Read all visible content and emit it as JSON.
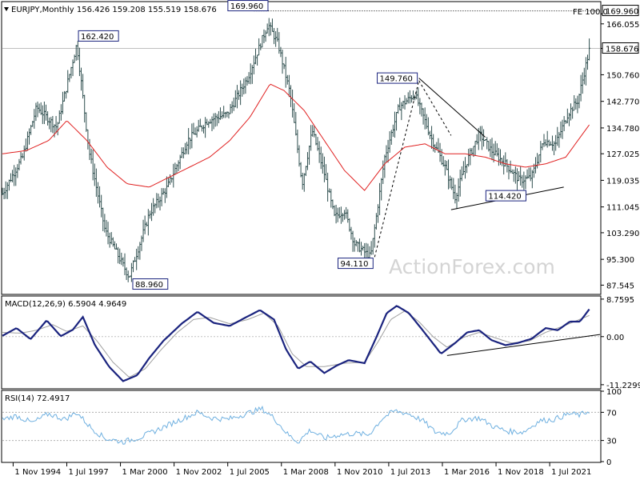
{
  "colors": {
    "price": "#2f4f4f",
    "ma": "#e02020",
    "macd": "#1a237e",
    "signal": "#a0a0a0",
    "rsi": "#6fb0e0",
    "annotation_text": "#1a237e",
    "trendline": "#000000"
  },
  "chart_data": [
    {
      "type": "bar",
      "pane": "price",
      "title": "EURJPY,Monthly  156.426 159.208 155.519 158.676",
      "ohlc": {
        "open": 156.426,
        "high": 159.208,
        "low": 155.519,
        "close": 158.676
      },
      "ylim": [
        85.0,
        172.5
      ],
      "y_ticks": [
        "166.055",
        "158.676",
        "150.760",
        "142.770",
        "134.780",
        "127.025",
        "119.035",
        "111.045",
        "103.290",
        "95.300",
        "87.545"
      ],
      "current_price_label": "158.676",
      "fe_label": "FE 100.0",
      "fe_price_label": "169.960",
      "x_ticks": [
        "1 Nov 1994",
        "1 Jul 1997",
        "1 Mar 2000",
        "1 Nov 2002",
        "1 Jul 2005",
        "1 Mar 2008",
        "1 Nov 2010",
        "1 Jul 2013",
        "1 Mar 2016",
        "1 Nov 2018",
        "1 Jul 2021"
      ],
      "x_range_years": [
        1994.3,
        2024.0
      ],
      "anchors": [
        [
          1994.3,
          115
        ],
        [
          1995.3,
          126
        ],
        [
          1996.0,
          141
        ],
        [
          1997.0,
          135
        ],
        [
          1998.0,
          160
        ],
        [
          1998.6,
          128
        ],
        [
          1999.4,
          104
        ],
        [
          2000.6,
          90
        ],
        [
          2001.6,
          109
        ],
        [
          2002.5,
          117
        ],
        [
          2003.5,
          131
        ],
        [
          2004.5,
          137
        ],
        [
          2005.5,
          139
        ],
        [
          2006.5,
          150
        ],
        [
          2007.5,
          166
        ],
        [
          2008.0,
          160
        ],
        [
          2008.6,
          145
        ],
        [
          2009.2,
          118
        ],
        [
          2009.7,
          134
        ],
        [
          2010.3,
          121
        ],
        [
          2010.8,
          108
        ],
        [
          2011.3,
          110
        ],
        [
          2011.8,
          100
        ],
        [
          2012.6,
          96
        ],
        [
          2013.3,
          126
        ],
        [
          2014.0,
          141
        ],
        [
          2014.8,
          145
        ],
        [
          2015.6,
          132
        ],
        [
          2016.3,
          123
        ],
        [
          2016.8,
          114
        ],
        [
          2017.4,
          125
        ],
        [
          2018.0,
          133
        ],
        [
          2018.6,
          128
        ],
        [
          2019.3,
          124
        ],
        [
          2020.0,
          119
        ],
        [
          2020.6,
          120
        ],
        [
          2021.2,
          131
        ],
        [
          2021.8,
          130
        ],
        [
          2022.4,
          139
        ],
        [
          2022.9,
          143
        ],
        [
          2023.5,
          159
        ]
      ],
      "ma_anchors": [
        [
          1994.3,
          127
        ],
        [
          1995.5,
          128
        ],
        [
          1996.6,
          131
        ],
        [
          1997.5,
          137
        ],
        [
          1998.5,
          131
        ],
        [
          1999.5,
          123
        ],
        [
          2000.5,
          118
        ],
        [
          2001.6,
          117
        ],
        [
          2002.6,
          120
        ],
        [
          2003.6,
          123
        ],
        [
          2004.6,
          126
        ],
        [
          2005.6,
          131
        ],
        [
          2006.6,
          138
        ],
        [
          2007.6,
          148
        ],
        [
          2008.3,
          146
        ],
        [
          2009.3,
          140
        ],
        [
          2010.3,
          131
        ],
        [
          2011.3,
          122
        ],
        [
          2012.3,
          116
        ],
        [
          2013.3,
          124
        ],
        [
          2014.3,
          129
        ],
        [
          2015.3,
          130
        ],
        [
          2016.3,
          127
        ],
        [
          2017.3,
          127
        ],
        [
          2018.3,
          126
        ],
        [
          2019.3,
          124
        ],
        [
          2020.3,
          123
        ],
        [
          2021.3,
          124
        ],
        [
          2022.3,
          126
        ],
        [
          2023.5,
          136
        ]
      ],
      "annotations": [
        {
          "label": "169.960",
          "x": 2006.9,
          "y": 169.96,
          "place": "above"
        },
        {
          "label": "162.420",
          "x": 1998.0,
          "y": 162.42,
          "place": "right"
        },
        {
          "label": "88.960",
          "x": 2000.7,
          "y": 88.96,
          "place": "below-right"
        },
        {
          "label": "149.760",
          "x": 2015.0,
          "y": 149.76,
          "place": "left"
        },
        {
          "label": "94.110",
          "x": 2012.8,
          "y": 94.11,
          "place": "left"
        },
        {
          "label": "114.420",
          "x": 2020.4,
          "y": 114.42,
          "place": "left"
        }
      ],
      "trendlines": [
        {
          "from": [
            2015.0,
            149.76
          ],
          "to": [
            2018.3,
            132.0
          ],
          "style": "solid"
        },
        {
          "from": [
            2016.6,
            110.2
          ],
          "to": [
            2022.2,
            117.0
          ],
          "style": "solid"
        },
        {
          "from": [
            2012.8,
            96.0
          ],
          "to": [
            2015.0,
            149.0
          ],
          "style": "dashed"
        },
        {
          "from": [
            2015.0,
            149.0
          ],
          "to": [
            2016.6,
            132.5
          ],
          "style": "dashed"
        },
        {
          "from": [
            2006.8,
            169.96
          ],
          "to": [
            2024.0,
            169.96
          ],
          "style": "dotted"
        }
      ],
      "watermark": "ActionForex.com"
    },
    {
      "type": "line",
      "pane": "macd",
      "title": "MACD(12,26,9) 6.5904 4.9649",
      "ylim": [
        -12.0,
        9.3
      ],
      "y_ticks": [
        "8.7595",
        "0.00",
        "-11.2299"
      ],
      "zero_level": 0.0,
      "anchors": [
        [
          1994.3,
          0.2
        ],
        [
          1995.0,
          2.0
        ],
        [
          1995.7,
          -0.6
        ],
        [
          1996.5,
          3.8
        ],
        [
          1997.2,
          0.1
        ],
        [
          1997.8,
          1.6
        ],
        [
          1998.3,
          4.6
        ],
        [
          1998.9,
          -2.0
        ],
        [
          1999.6,
          -7.0
        ],
        [
          2000.3,
          -10.4
        ],
        [
          2001.0,
          -9.0
        ],
        [
          2001.6,
          -5.0
        ],
        [
          2002.3,
          -1.0
        ],
        [
          2003.2,
          3.0
        ],
        [
          2004.0,
          5.8
        ],
        [
          2004.8,
          3.2
        ],
        [
          2005.6,
          2.5
        ],
        [
          2006.4,
          4.5
        ],
        [
          2007.1,
          6.2
        ],
        [
          2007.8,
          4.0
        ],
        [
          2008.4,
          -3.0
        ],
        [
          2009.0,
          -7.5
        ],
        [
          2009.6,
          -5.8
        ],
        [
          2010.3,
          -8.5
        ],
        [
          2010.9,
          -6.8
        ],
        [
          2011.5,
          -5.5
        ],
        [
          2012.3,
          -6.2
        ],
        [
          2012.9,
          0.0
        ],
        [
          2013.4,
          5.5
        ],
        [
          2013.9,
          7.2
        ],
        [
          2014.5,
          5.5
        ],
        [
          2015.1,
          2.0
        ],
        [
          2015.6,
          -1.0
        ],
        [
          2016.1,
          -4.0
        ],
        [
          2016.8,
          -1.5
        ],
        [
          2017.4,
          1.0
        ],
        [
          2018.0,
          1.5
        ],
        [
          2018.6,
          -0.8
        ],
        [
          2019.3,
          -2.0
        ],
        [
          2019.9,
          -1.5
        ],
        [
          2020.6,
          -0.5
        ],
        [
          2021.3,
          2.0
        ],
        [
          2021.9,
          1.5
        ],
        [
          2022.5,
          3.5
        ],
        [
          2023.0,
          3.5
        ],
        [
          2023.5,
          6.6
        ]
      ],
      "signal_anchors": [
        [
          1994.3,
          1.0
        ],
        [
          1995.2,
          0.8
        ],
        [
          1996.0,
          1.5
        ],
        [
          1996.8,
          2.8
        ],
        [
          1997.5,
          1.2
        ],
        [
          1998.3,
          2.5
        ],
        [
          1999.0,
          -1.0
        ],
        [
          1999.8,
          -6.0
        ],
        [
          2000.6,
          -9.5
        ],
        [
          2001.4,
          -7.5
        ],
        [
          2002.2,
          -3.0
        ],
        [
          2003.0,
          1.0
        ],
        [
          2003.8,
          4.0
        ],
        [
          2004.6,
          4.5
        ],
        [
          2005.6,
          3.0
        ],
        [
          2006.5,
          4.0
        ],
        [
          2007.3,
          5.5
        ],
        [
          2008.0,
          2.5
        ],
        [
          2008.7,
          -4.0
        ],
        [
          2009.4,
          -7.0
        ],
        [
          2010.3,
          -7.0
        ],
        [
          2011.3,
          -6.2
        ],
        [
          2012.3,
          -6.0
        ],
        [
          2013.0,
          -1.0
        ],
        [
          2013.6,
          4.0
        ],
        [
          2014.3,
          6.0
        ],
        [
          2015.0,
          3.5
        ],
        [
          2015.7,
          0.0
        ],
        [
          2016.4,
          -2.5
        ],
        [
          2017.2,
          -0.2
        ],
        [
          2018.0,
          1.0
        ],
        [
          2018.8,
          -0.3
        ],
        [
          2019.6,
          -1.5
        ],
        [
          2020.5,
          -1.0
        ],
        [
          2021.3,
          1.0
        ],
        [
          2022.2,
          2.5
        ],
        [
          2023.5,
          5.0
        ]
      ],
      "trendline": {
        "from": [
          2016.4,
          -4.4
        ],
        "to": [
          2024.0,
          0.5
        ]
      }
    },
    {
      "type": "line",
      "pane": "rsi",
      "title": "RSI(14) 72.4917",
      "ylim": [
        0,
        100
      ],
      "y_ticks": [
        "100",
        "70",
        "30",
        "0"
      ],
      "levels": [
        70,
        30
      ],
      "anchors": [
        [
          1994.3,
          60
        ],
        [
          1995.0,
          65
        ],
        [
          1995.8,
          55
        ],
        [
          1996.6,
          68
        ],
        [
          1997.4,
          60
        ],
        [
          1998.0,
          70
        ],
        [
          1998.7,
          48
        ],
        [
          1999.4,
          33
        ],
        [
          2000.3,
          28
        ],
        [
          2001.2,
          35
        ],
        [
          2002.0,
          45
        ],
        [
          2003.0,
          58
        ],
        [
          2004.0,
          70
        ],
        [
          2004.7,
          62
        ],
        [
          2005.5,
          60
        ],
        [
          2006.4,
          68
        ],
        [
          2007.2,
          75
        ],
        [
          2007.8,
          62
        ],
        [
          2008.5,
          38
        ],
        [
          2009.0,
          28
        ],
        [
          2009.6,
          45
        ],
        [
          2010.3,
          33
        ],
        [
          2011.0,
          38
        ],
        [
          2011.8,
          40
        ],
        [
          2012.5,
          38
        ],
        [
          2013.2,
          62
        ],
        [
          2013.8,
          72
        ],
        [
          2014.5,
          68
        ],
        [
          2015.2,
          58
        ],
        [
          2015.8,
          42
        ],
        [
          2016.5,
          40
        ],
        [
          2017.2,
          60
        ],
        [
          2018.0,
          62
        ],
        [
          2018.7,
          50
        ],
        [
          2019.4,
          43
        ],
        [
          2020.2,
          42
        ],
        [
          2021.0,
          58
        ],
        [
          2021.7,
          60
        ],
        [
          2022.5,
          68
        ],
        [
          2023.0,
          66
        ],
        [
          2023.5,
          72.5
        ]
      ]
    }
  ]
}
